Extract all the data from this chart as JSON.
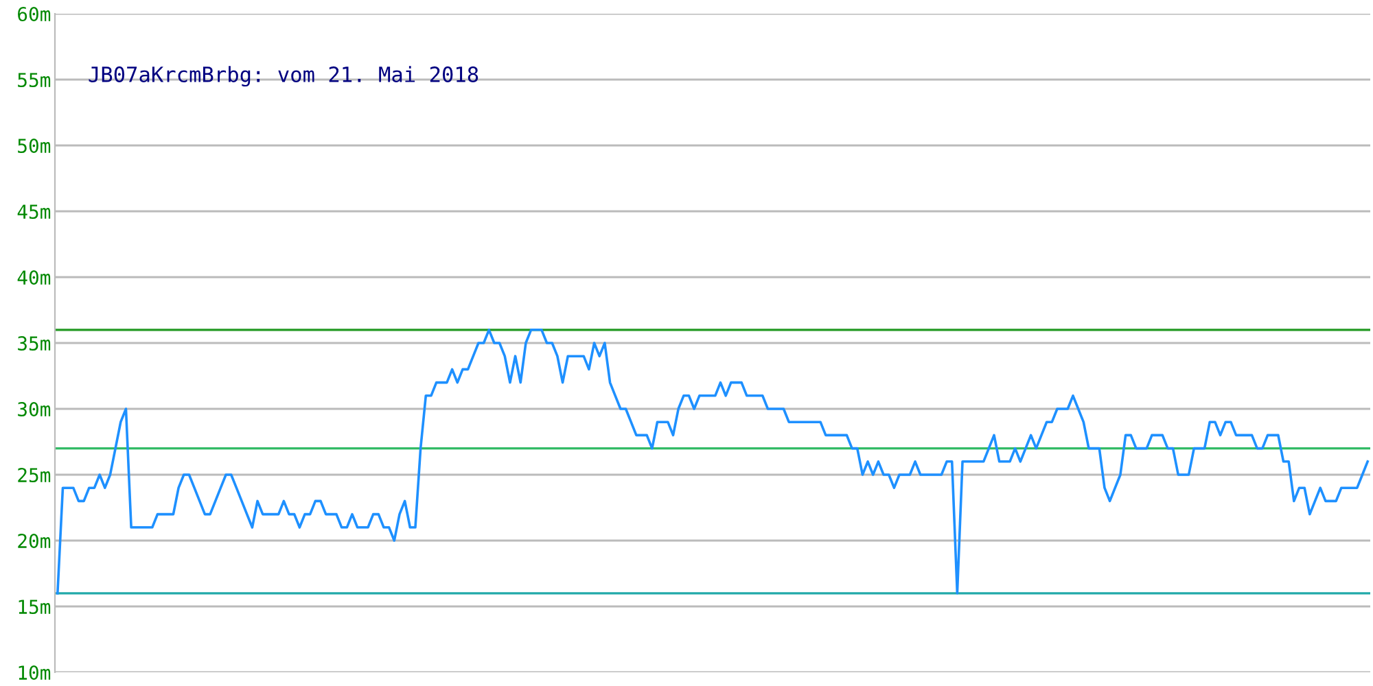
{
  "chart_data": {
    "type": "line",
    "title": "JB07aKrcmBrbg: vom 21. Mai 2018",
    "categories": [
      null,
      null,
      null,
      null,
      null,
      null,
      null,
      null,
      null,
      null,
      null,
      null,
      null,
      null,
      null,
      null,
      null,
      null,
      null,
      null,
      null,
      null,
      null,
      null,
      null,
      null,
      null,
      null,
      null,
      null,
      null,
      null,
      null,
      null,
      null,
      null,
      null,
      null,
      null,
      null,
      null,
      null,
      null,
      null,
      null,
      null,
      null,
      null,
      null,
      null,
      null,
      null,
      null,
      null,
      null,
      null,
      null,
      null,
      null,
      null,
      null,
      null,
      null,
      null,
      null,
      null,
      null,
      null,
      null,
      null,
      null,
      null,
      null,
      null,
      null,
      null,
      null,
      null,
      null,
      null,
      null,
      null,
      null,
      null,
      null,
      null,
      null,
      null,
      null,
      null,
      null,
      null,
      null,
      null,
      null,
      null,
      null,
      null,
      null,
      null,
      null,
      null,
      null,
      null,
      null,
      null,
      null,
      null,
      null,
      null,
      null,
      null,
      null,
      null,
      null,
      null,
      null,
      null,
      null,
      null,
      null,
      null,
      null,
      null,
      null,
      null,
      null,
      null,
      null,
      null,
      null,
      null,
      null,
      null,
      null,
      null,
      null,
      null,
      null,
      null,
      null,
      null,
      null,
      null,
      null,
      null,
      null,
      null,
      null,
      null,
      null,
      null,
      null,
      null,
      null,
      null,
      null,
      null,
      null,
      null,
      null,
      null,
      null,
      null,
      null,
      null,
      null,
      null,
      null,
      null,
      null,
      null,
      null,
      null,
      null,
      null,
      null,
      null,
      null,
      null,
      null,
      null,
      null,
      null,
      null,
      null,
      null,
      null,
      null,
      null,
      null,
      null,
      null,
      null,
      null,
      null,
      null,
      null,
      null,
      null,
      null,
      null,
      null,
      null,
      null,
      null,
      null,
      null,
      null,
      null,
      null,
      null,
      null,
      null,
      null,
      null,
      null,
      null,
      null,
      null,
      null,
      null,
      null,
      null,
      null,
      null,
      null,
      null,
      null,
      null,
      null,
      null,
      null,
      null,
      null,
      null,
      null,
      null,
      null,
      null,
      null,
      null,
      null,
      null,
      null,
      null,
      null,
      null,
      null,
      null
    ],
    "series": [
      {
        "color": "#1e90ff",
        "values": [
          16,
          24,
          24,
          24,
          23,
          23,
          24,
          24,
          25,
          24,
          25,
          27,
          29,
          30,
          21,
          21,
          21,
          21,
          21,
          22,
          22,
          22,
          22,
          24,
          25,
          25,
          24,
          23,
          22,
          22,
          23,
          24,
          25,
          25,
          24,
          23,
          22,
          21,
          23,
          22,
          22,
          22,
          22,
          23,
          22,
          22,
          21,
          22,
          22,
          23,
          23,
          22,
          22,
          22,
          21,
          21,
          22,
          21,
          21,
          21,
          22,
          22,
          21,
          21,
          20,
          22,
          23,
          21,
          21,
          27,
          31,
          31,
          32,
          32,
          32,
          33,
          32,
          33,
          33,
          34,
          35,
          35,
          36,
          35,
          35,
          34,
          32,
          34,
          32,
          35,
          36,
          36,
          36,
          35,
          35,
          34,
          32,
          34,
          34,
          34,
          34,
          33,
          35,
          34,
          35,
          32,
          31,
          30,
          30,
          29,
          28,
          28,
          28,
          27,
          29,
          29,
          29,
          28,
          30,
          31,
          31,
          30,
          31,
          31,
          31,
          31,
          32,
          31,
          32,
          32,
          32,
          31,
          31,
          31,
          31,
          30,
          30,
          30,
          30,
          29,
          29,
          29,
          29,
          29,
          29,
          29,
          28,
          28,
          28,
          28,
          28,
          27,
          27,
          25,
          26,
          25,
          26,
          25,
          25,
          24,
          25,
          25,
          25,
          26,
          25,
          25,
          25,
          25,
          25,
          26,
          26,
          16,
          26,
          26,
          26,
          26,
          26,
          27,
          28,
          26,
          26,
          26,
          27,
          26,
          27,
          28,
          27,
          28,
          29,
          29,
          30,
          30,
          30,
          31,
          30,
          29,
          27,
          27,
          27,
          24,
          23,
          24,
          25,
          28,
          28,
          27,
          27,
          27,
          28,
          28,
          28,
          27,
          27,
          25,
          25,
          25,
          27,
          27,
          27,
          29,
          29,
          28,
          29,
          29,
          28,
          28,
          28,
          28,
          27,
          27,
          28,
          28,
          28,
          26,
          26,
          23,
          24,
          24,
          22,
          23,
          24,
          23,
          23,
          23,
          24,
          24,
          24,
          24,
          25,
          26
        ]
      }
    ],
    "ylim": [
      10,
      60
    ],
    "yticks": [
      {
        "value": 10,
        "label": "10m"
      },
      {
        "value": 15,
        "label": "15m"
      },
      {
        "value": 20,
        "label": "20m"
      },
      {
        "value": 25,
        "label": "25m"
      },
      {
        "value": 30,
        "label": "30m"
      },
      {
        "value": 35,
        "label": "35m"
      },
      {
        "value": 40,
        "label": "40m"
      },
      {
        "value": 45,
        "label": "45m"
      },
      {
        "value": 50,
        "label": "50m"
      },
      {
        "value": 55,
        "label": "55m"
      },
      {
        "value": 60,
        "label": "60m"
      }
    ],
    "tick_labels": "y",
    "grid": "y",
    "marker": "none",
    "line_style": "solid",
    "ref_lines": [
      {
        "axis": "y",
        "value": 36,
        "color": "#229922"
      },
      {
        "axis": "y",
        "value": 27,
        "color": "#33bb66"
      },
      {
        "axis": "y",
        "value": 16,
        "color": "#22aaaa"
      }
    ]
  }
}
